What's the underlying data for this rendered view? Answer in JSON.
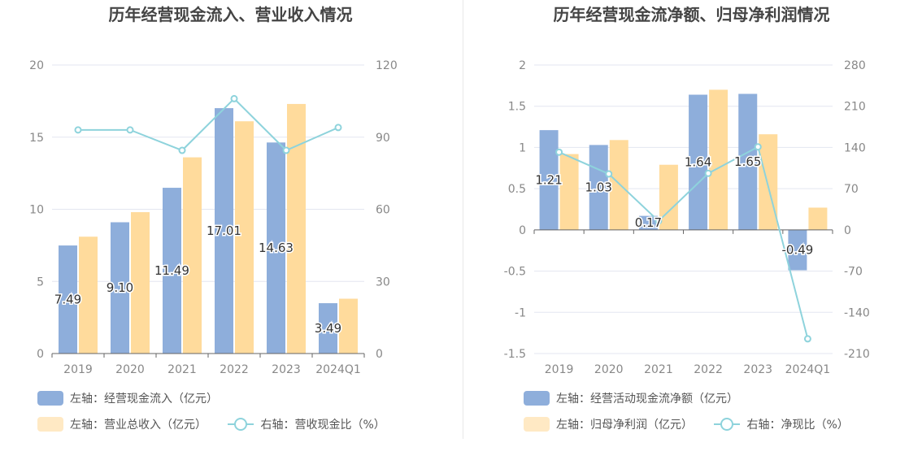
{
  "chart_data": [
    {
      "type": "bar",
      "title": "历年经营现金流入、营业收入情况",
      "categories": [
        "2019",
        "2020",
        "2021",
        "2022",
        "2023",
        "2024Q1"
      ],
      "left_axis": {
        "min": 0,
        "max": 20,
        "ticks": [
          "0",
          "5",
          "10",
          "15",
          "20"
        ]
      },
      "right_axis": {
        "min": 0,
        "max": 120,
        "ticks": [
          "0",
          "30",
          "60",
          "90",
          "120"
        ]
      },
      "series": [
        {
          "name": "左轴：经营现金流入（亿元）",
          "type": "bar",
          "axis": "left",
          "color": "#8eaedb",
          "values": [
            7.49,
            9.1,
            11.49,
            17.01,
            14.63,
            3.49
          ],
          "labels": [
            "7.49",
            "9.10",
            "11.49",
            "17.01",
            "14.63",
            "3.49"
          ]
        },
        {
          "name": "左轴：营业总收入（亿元）",
          "type": "bar",
          "axis": "left",
          "color": "#ffdb9c",
          "values": [
            8.1,
            9.8,
            13.6,
            16.1,
            17.3,
            3.8
          ]
        },
        {
          "name": "右轴：营收现金比（%）",
          "type": "line",
          "axis": "right",
          "color": "#8ed3dc",
          "values": [
            93,
            93,
            84.5,
            106,
            84.5,
            94
          ]
        }
      ],
      "legend": {
        "placement": "bottom-left"
      },
      "grid": true
    },
    {
      "type": "bar",
      "title": "历年经营现金流净额、归母净利润情况",
      "categories": [
        "2019",
        "2020",
        "2021",
        "2022",
        "2023",
        "2024Q1"
      ],
      "left_axis": {
        "min": -1.5,
        "max": 2,
        "ticks": [
          "-1.5",
          "-1",
          "-0.5",
          "0",
          "0.5",
          "1",
          "1.5",
          "2"
        ]
      },
      "right_axis": {
        "min": -210,
        "max": 280,
        "ticks": [
          "-210",
          "-140",
          "-70",
          "0",
          "70",
          "140",
          "210",
          "280"
        ]
      },
      "series": [
        {
          "name": "左轴：经营活动现金流净额（亿元）",
          "type": "bar",
          "axis": "left",
          "color": "#8eaedb",
          "values": [
            1.21,
            1.03,
            0.17,
            1.64,
            1.65,
            -0.49
          ],
          "labels": [
            "1.21",
            "1.03",
            "0.17",
            "1.64",
            "1.65",
            "-0.49"
          ]
        },
        {
          "name": "左轴：归母净利润（亿元）",
          "type": "bar",
          "axis": "left",
          "color": "#ffdb9c",
          "values": [
            0.92,
            1.09,
            0.79,
            1.7,
            1.16,
            0.27
          ]
        },
        {
          "name": "右轴：净现比（%）",
          "type": "line",
          "axis": "right",
          "color": "#8ed3dc",
          "values": [
            132,
            95,
            15,
            96,
            141,
            -185
          ]
        }
      ],
      "legend": {
        "placement": "bottom-left"
      },
      "grid": true
    }
  ]
}
